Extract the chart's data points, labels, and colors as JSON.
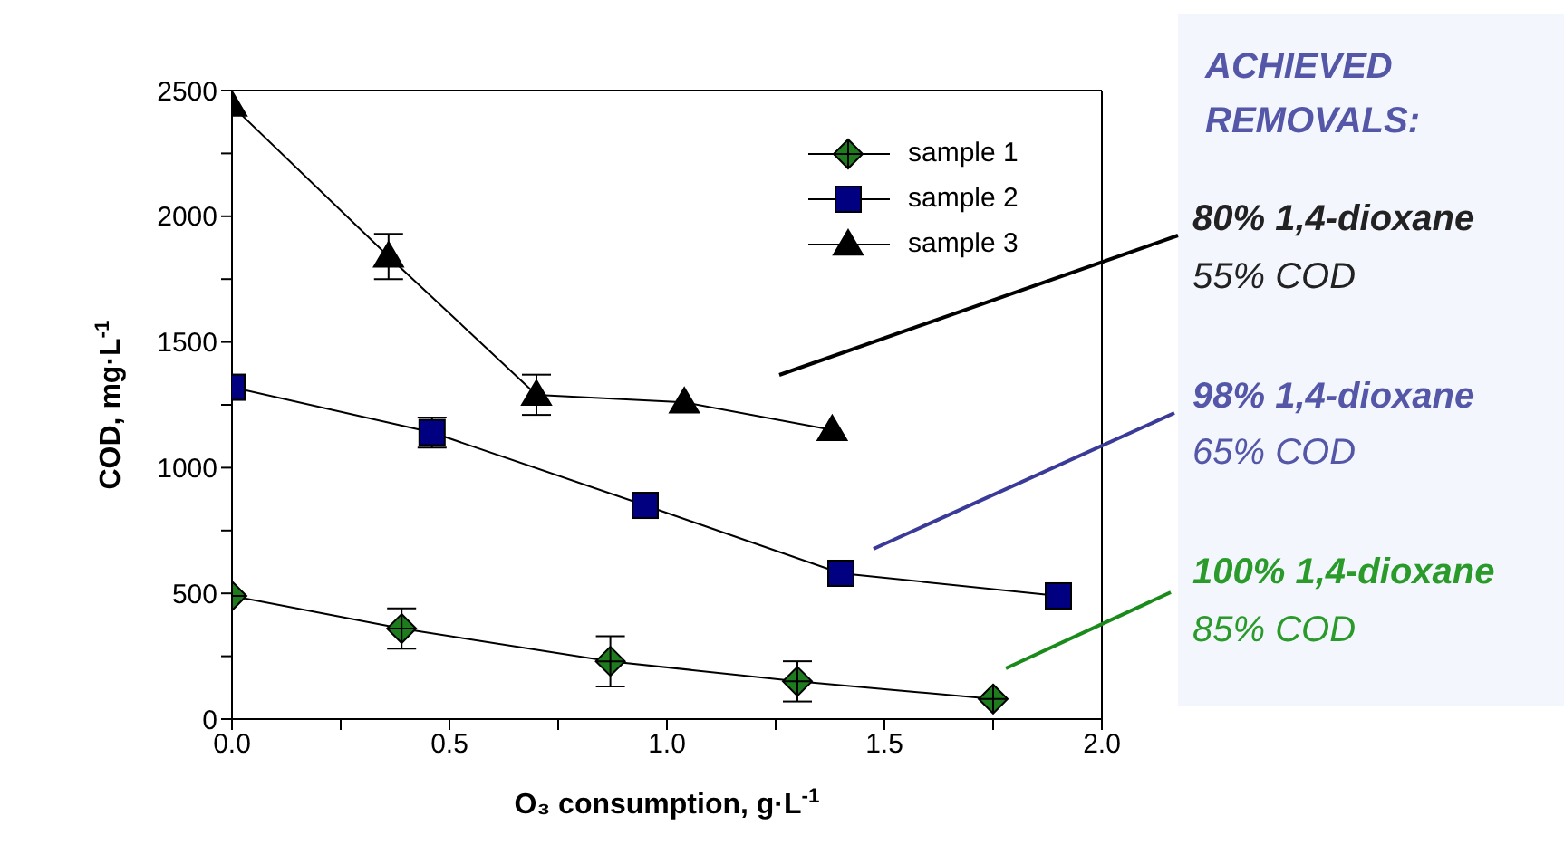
{
  "chart_data": {
    "type": "line",
    "xlabel": "O₃ consumption, g·L$^{-1}$",
    "ylabel": "COD, mg·L$^{-1}$",
    "xlim": [
      0,
      2
    ],
    "ylim": [
      0,
      2500
    ],
    "xticks": [
      {
        "value": 0,
        "label": "0.0"
      },
      {
        "value": 0.25,
        "label": null
      },
      {
        "value": 0.5,
        "label": "0.5"
      },
      {
        "value": 0.75,
        "label": null
      },
      {
        "value": 1,
        "label": "1.0"
      },
      {
        "value": 1.25,
        "label": null
      },
      {
        "value": 1.5,
        "label": "1.5"
      },
      {
        "value": 1.75,
        "label": null
      },
      {
        "value": 2,
        "label": "2.0"
      }
    ],
    "yticks": [
      0,
      {
        "value": 250,
        "label": null
      },
      500,
      {
        "value": 750,
        "label": null
      },
      1000,
      {
        "value": 1250,
        "label": null
      },
      1500,
      {
        "value": 1750,
        "label": null
      },
      2000,
      {
        "value": 2250,
        "label": null
      },
      2500
    ],
    "legend": "top right",
    "series": [
      {
        "name": "sample 1",
        "color": "#1e7b1e",
        "marker": "diamond",
        "x": [
          0,
          0.39,
          0.87,
          1.3,
          1.75
        ],
        "values": [
          490,
          360,
          230,
          150,
          80
        ],
        "errors": [
          null,
          80,
          100,
          80,
          null
        ]
      },
      {
        "name": "sample 2",
        "color": "#000080",
        "marker": "square",
        "x": [
          0,
          0.46,
          0.95,
          1.4,
          1.9
        ],
        "values": [
          1320,
          1140,
          850,
          580,
          490
        ],
        "errors": [
          null,
          60,
          null,
          null,
          null
        ]
      },
      {
        "name": "sample 3",
        "color": "#000000",
        "marker": "triangle",
        "x": [
          0,
          0.36,
          0.7,
          1.04,
          1.38
        ],
        "values": [
          2440,
          1840,
          1290,
          1260,
          1150
        ],
        "errors": [
          null,
          90,
          80,
          null,
          null
        ]
      }
    ],
    "annotations": [
      "ACHIEVED",
      "REMOVALS:",
      "80% 1,4-dioxane",
      "55% COD",
      "98% 1,4-dioxane",
      "65% COD",
      "100% 1,4-dioxane",
      "85% COD"
    ]
  }
}
